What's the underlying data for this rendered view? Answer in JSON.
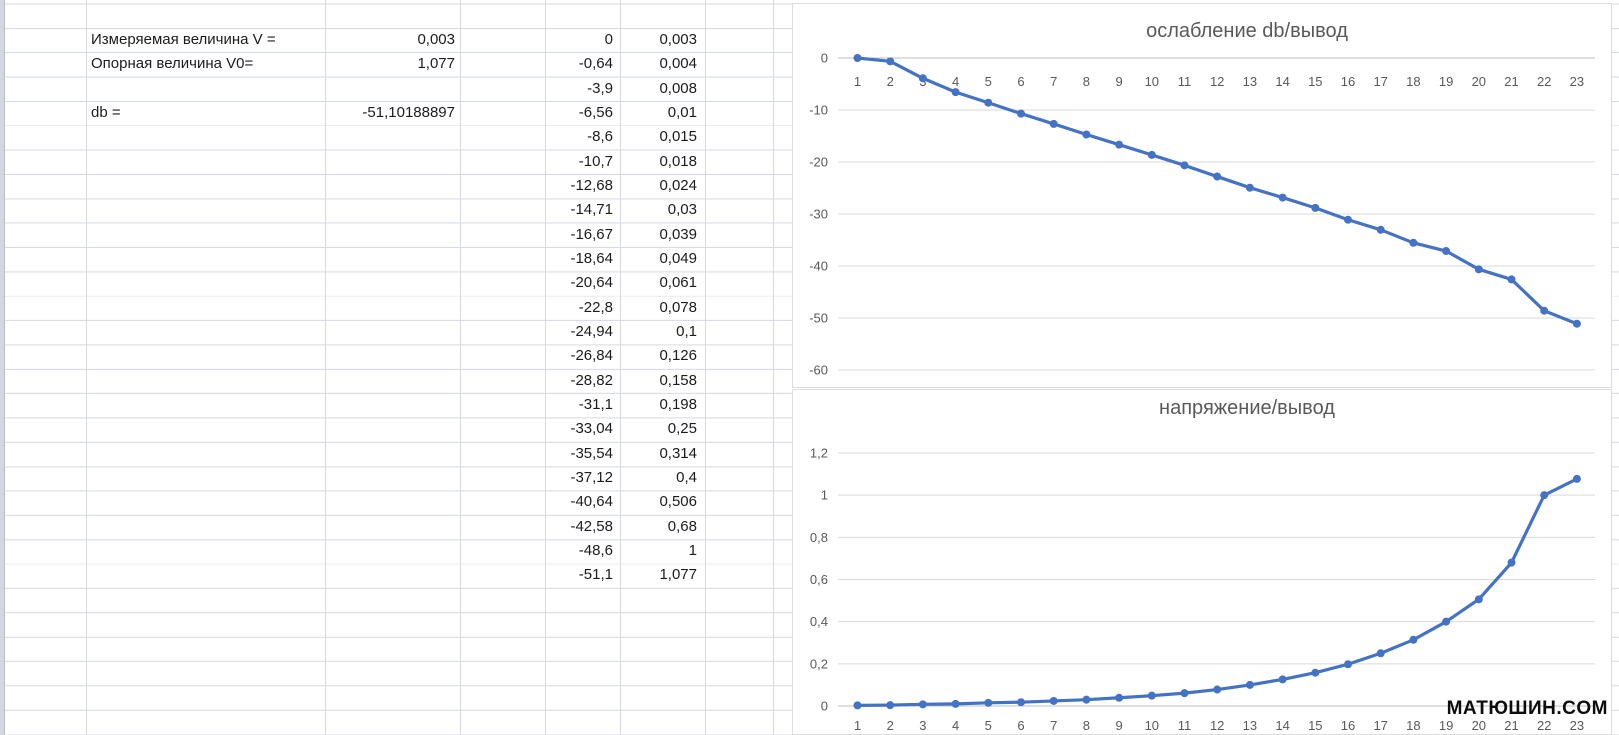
{
  "app": {
    "grid_color": "#d7dbe1",
    "accent_line_color": "#4472C4",
    "axis_text_color": "#595959",
    "highlight_cell_color": "#fcc435"
  },
  "parameters": {
    "measured_label": "Измеряемая величина V =",
    "measured_value": "0,003",
    "reference_label": "Опорная величина V0=",
    "reference_value": "1,077",
    "db_label": "db =",
    "db_value": "-51,10188897"
  },
  "data_table": {
    "rows": [
      [
        "0",
        "0,003"
      ],
      [
        "-0,64",
        "0,004"
      ],
      [
        "-3,9",
        "0,008"
      ],
      [
        "-6,56",
        "0,01"
      ],
      [
        "-8,6",
        "0,015"
      ],
      [
        "-10,7",
        "0,018"
      ],
      [
        "-12,68",
        "0,024"
      ],
      [
        "-14,71",
        "0,03"
      ],
      [
        "-16,67",
        "0,039"
      ],
      [
        "-18,64",
        "0,049"
      ],
      [
        "-20,64",
        "0,061"
      ],
      [
        "-22,8",
        "0,078"
      ],
      [
        "-24,94",
        "0,1"
      ],
      [
        "-26,84",
        "0,126"
      ],
      [
        "-28,82",
        "0,158"
      ],
      [
        "-31,1",
        "0,198"
      ],
      [
        "-33,04",
        "0,25"
      ],
      [
        "-35,54",
        "0,314"
      ],
      [
        "-37,12",
        "0,4"
      ],
      [
        "-40,64",
        "0,506"
      ],
      [
        "-42,58",
        "0,68"
      ],
      [
        "-48,6",
        "1"
      ],
      [
        "-51,1",
        "1,077"
      ]
    ]
  },
  "watermark": "МАТЮШИН.COM",
  "chart_data": [
    {
      "type": "line",
      "title": "ослабление db/вывод",
      "x": [
        1,
        2,
        3,
        4,
        5,
        6,
        7,
        8,
        9,
        10,
        11,
        12,
        13,
        14,
        15,
        16,
        17,
        18,
        19,
        20,
        21,
        22,
        23
      ],
      "values": [
        0,
        -0.64,
        -3.9,
        -6.56,
        -8.6,
        -10.7,
        -12.68,
        -14.71,
        -16.67,
        -18.64,
        -20.64,
        -22.8,
        -24.94,
        -26.84,
        -28.82,
        -31.1,
        -33.04,
        -35.54,
        -37.12,
        -40.64,
        -42.58,
        -48.6,
        -51.1
      ],
      "xlabel": "",
      "ylabel": "",
      "ylim": [
        -60,
        0
      ],
      "yticks": [
        0,
        -10,
        -20,
        -30,
        -40,
        -50,
        -60
      ],
      "ytick_labels": [
        "0",
        "-10",
        "-20",
        "-30",
        "-40",
        "-50",
        "-60"
      ],
      "grid": true,
      "legend": "none",
      "line_color": "#4472C4",
      "marker": "circle"
    },
    {
      "type": "line",
      "title": "напряжение/вывод",
      "x": [
        1,
        2,
        3,
        4,
        5,
        6,
        7,
        8,
        9,
        10,
        11,
        12,
        13,
        14,
        15,
        16,
        17,
        18,
        19,
        20,
        21,
        22,
        23
      ],
      "values": [
        0.003,
        0.004,
        0.008,
        0.01,
        0.015,
        0.018,
        0.024,
        0.03,
        0.039,
        0.049,
        0.061,
        0.078,
        0.1,
        0.126,
        0.158,
        0.198,
        0.25,
        0.314,
        0.4,
        0.506,
        0.68,
        1,
        1.077
      ],
      "xlabel": "",
      "ylabel": "",
      "ylim": [
        0,
        1.2
      ],
      "yticks": [
        0,
        0.2,
        0.4,
        0.6,
        0.8,
        1,
        1.2
      ],
      "ytick_labels": [
        "0",
        "0,2",
        "0,4",
        "0,6",
        "0,8",
        "1",
        "1,2"
      ],
      "grid": true,
      "legend": "none",
      "line_color": "#4472C4",
      "marker": "circle"
    }
  ]
}
